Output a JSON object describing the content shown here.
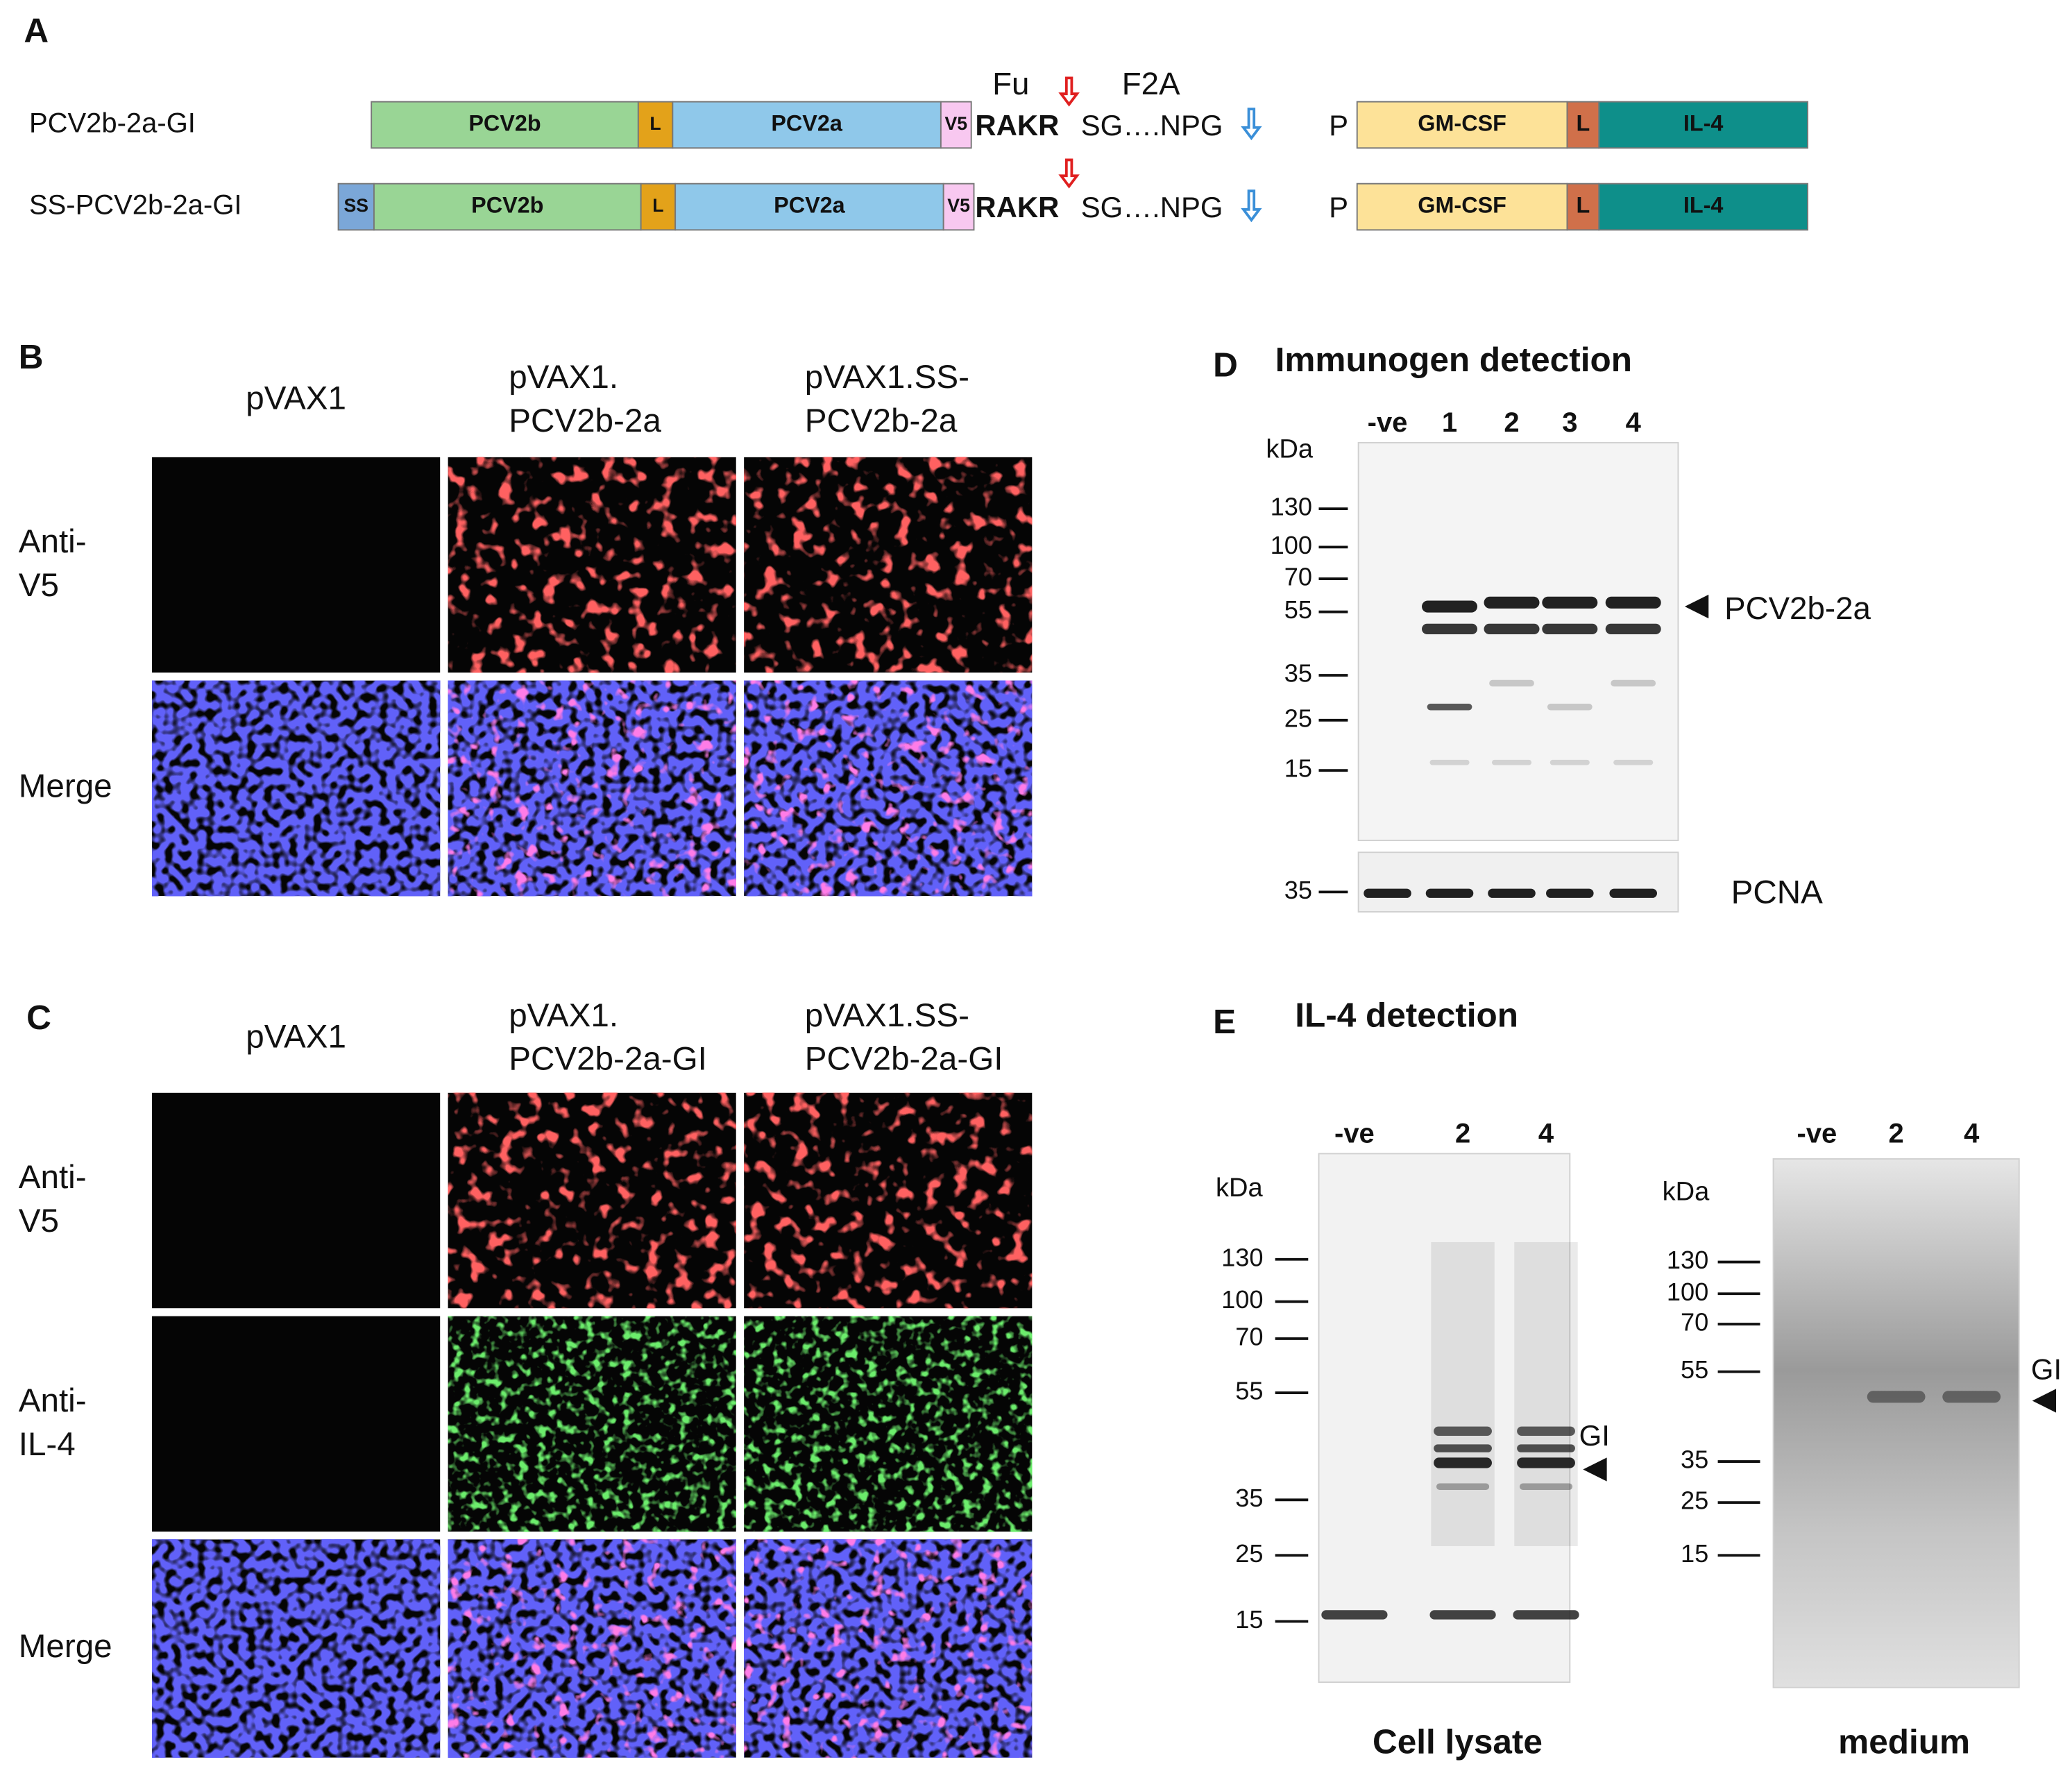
{
  "panel_a": {
    "label": "A",
    "constructs": [
      {
        "name": "PCV2b-2a-GI",
        "segments": [
          "PCV2b",
          "L",
          "PCV2a",
          "V5"
        ],
        "cleavage_site": "RAKR",
        "linker": "SG….NPG",
        "furin": "Fu",
        "f2a": "F2A",
        "promoter": "P",
        "cassette": [
          "GM-CSF",
          "L",
          "IL-4"
        ]
      },
      {
        "name": "SS-PCV2b-2a-GI",
        "segments": [
          "SS",
          "PCV2b",
          "L",
          "PCV2a",
          "V5"
        ],
        "cleavage_site": "RAKR",
        "linker": "SG….NPG",
        "promoter": "P",
        "cassette": [
          "GM-CSF",
          "L",
          "IL-4"
        ]
      }
    ]
  },
  "panel_b": {
    "label": "B",
    "columns": [
      [
        "pVAX1"
      ],
      [
        "pVAX1.",
        "PCV2b-2a"
      ],
      [
        "pVAX1.SS-",
        "PCV2b-2a"
      ]
    ],
    "rows": [
      [
        "Anti-",
        "V5"
      ],
      [
        "Merge"
      ]
    ]
  },
  "panel_c": {
    "label": "C",
    "columns": [
      [
        "pVAX1"
      ],
      [
        "pVAX1.",
        "PCV2b-2a-GI"
      ],
      [
        "pVAX1.SS-",
        "PCV2b-2a-GI"
      ]
    ],
    "rows": [
      [
        "Anti-",
        "V5"
      ],
      [
        "Anti-",
        "IL-4"
      ],
      [
        "Merge"
      ]
    ]
  },
  "panel_d": {
    "label": "D",
    "title": "Immunogen detection",
    "lanes": [
      "-ve",
      "1",
      "2",
      "3",
      "4"
    ],
    "unit": "kDa",
    "markers": [
      130,
      100,
      70,
      55,
      35,
      25,
      15
    ],
    "band_label": "PCV2b-2a",
    "loading_control": "PCNA",
    "loading_marker": 35
  },
  "panel_e": {
    "label": "E",
    "title": "IL-4 detection",
    "blots": [
      {
        "caption": "Cell lysate",
        "lanes": [
          "-ve",
          "2",
          "4"
        ],
        "unit": "kDa",
        "markers": [
          130,
          100,
          70,
          55,
          35,
          25,
          15
        ],
        "band_label": "GI"
      },
      {
        "caption": "medium",
        "lanes": [
          "-ve",
          "2",
          "4"
        ],
        "unit": "kDa",
        "markers": [
          130,
          100,
          70,
          55,
          35,
          25,
          15
        ],
        "band_label": "GI"
      }
    ]
  }
}
